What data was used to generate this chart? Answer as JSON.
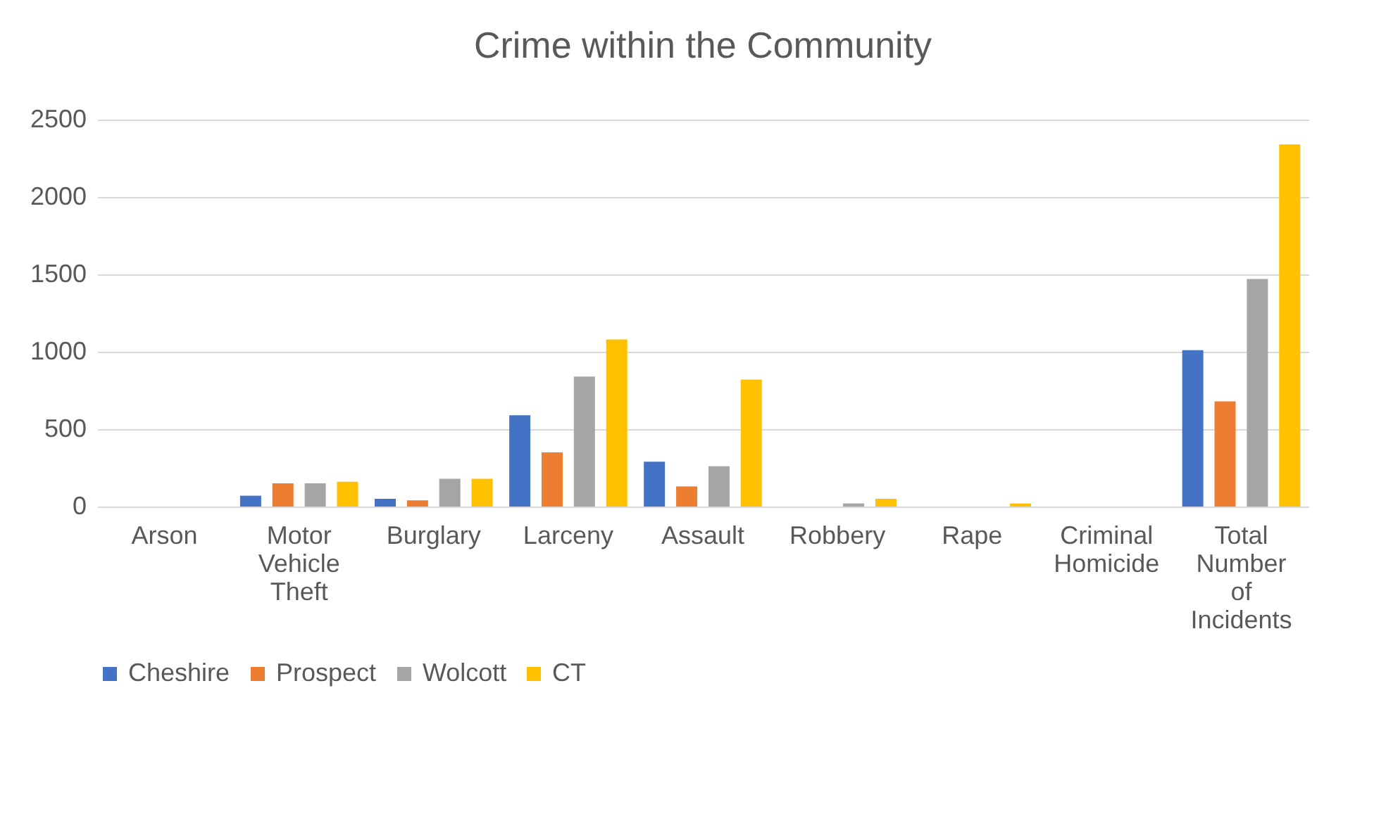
{
  "chart_data": {
    "type": "bar",
    "title": "Crime within the Community",
    "categories": [
      "Arson",
      "Motor Vehicle Theft",
      "Burglary",
      "Larceny",
      "Assault",
      "Robbery",
      "Rape",
      "Criminal Homicide",
      "Total Number of Incidents"
    ],
    "series": [
      {
        "name": "Cheshire",
        "color": "#4472c4",
        "values": [
          0,
          70,
          50,
          590,
          290,
          0,
          0,
          0,
          1010
        ]
      },
      {
        "name": "Prospect",
        "color": "#ed7d31",
        "values": [
          0,
          150,
          40,
          350,
          130,
          0,
          0,
          0,
          680
        ]
      },
      {
        "name": "Wolcott",
        "color": "#a5a5a5",
        "values": [
          0,
          150,
          180,
          840,
          260,
          20,
          0,
          0,
          1470
        ]
      },
      {
        "name": "CT",
        "color": "#ffc000",
        "values": [
          0,
          160,
          180,
          1080,
          820,
          50,
          20,
          0,
          2340
        ]
      }
    ],
    "ylim": [
      0,
      2500
    ],
    "yticks": [
      0,
      500,
      1000,
      1500,
      2000,
      2500
    ],
    "grid": "y",
    "legend": "bottom"
  }
}
